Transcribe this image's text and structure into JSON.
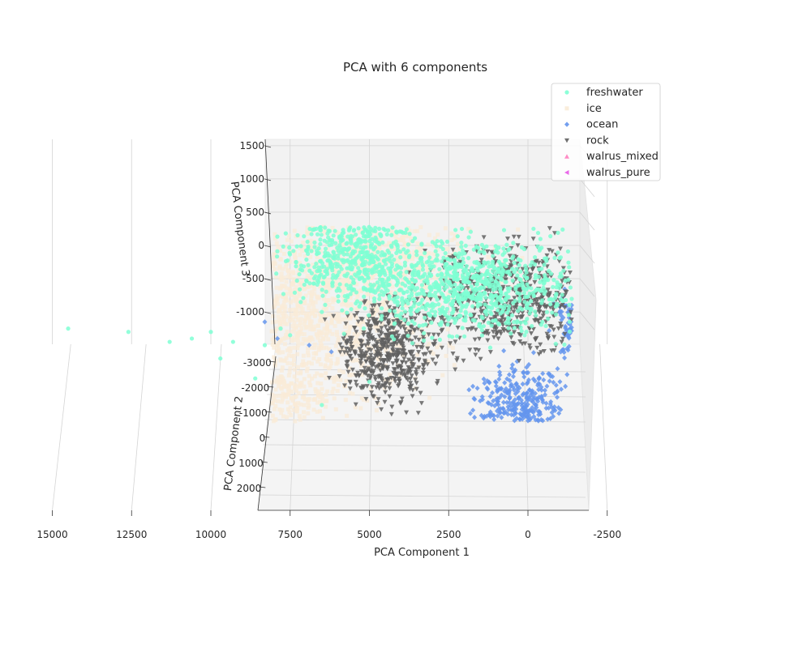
{
  "chart_data": {
    "type": "scatter",
    "projection": "3d",
    "title": "PCA with 6 components",
    "xlabel": "PCA Component 1",
    "ylabel": "PCA Component 2",
    "zlabel": "PCA Component 3",
    "xlim": [
      17000,
      -4000
    ],
    "ylim": [
      -3500,
      2500
    ],
    "zlim": [
      -1500,
      1500
    ],
    "x_ticks": [
      15000,
      12500,
      10000,
      7500,
      5000,
      2500,
      0,
      -2500
    ],
    "y_ticks": [
      -3000,
      -2000,
      -1000,
      0,
      1000,
      2000
    ],
    "z_ticks": [
      1500,
      1000,
      500,
      0,
      -500,
      -1000
    ],
    "grid": true,
    "legend_position": "top-right",
    "series": [
      {
        "name": "freshwater",
        "color": "#7fffd4",
        "marker": "circle",
        "clusters": [
          {
            "pc1_center": 2000,
            "pc1_spread": 1800,
            "pc3_center": -600,
            "pc3_spread": 350,
            "count": 900
          },
          {
            "pc1_center": 5500,
            "pc1_spread": 1100,
            "pc3_center": -100,
            "pc3_spread": 350,
            "count": 500
          }
        ],
        "points": [
          {
            "pc1": 14500,
            "pc3": -1250
          },
          {
            "pc1": 12600,
            "pc3": -1300
          },
          {
            "pc1": 11300,
            "pc3": -1450
          },
          {
            "pc1": 10600,
            "pc3": -1400
          },
          {
            "pc1": 10000,
            "pc3": -1300
          },
          {
            "pc1": 9300,
            "pc3": -1450
          },
          {
            "pc1": 8300,
            "pc3": -1500
          },
          {
            "pc1": 7500,
            "pc3": -1350
          },
          {
            "pc1": 9700,
            "pc3": -1700
          },
          {
            "pc1": 7800,
            "pc3": -1250
          },
          {
            "pc1": 6500,
            "pc3": -1000
          },
          {
            "pc1": 8600,
            "pc3": -2000
          },
          {
            "pc1": 5000,
            "pc3": -2050
          },
          {
            "pc1": 6500,
            "pc3": -2400
          }
        ]
      },
      {
        "name": "ice",
        "color": "#faebd7",
        "marker": "x",
        "clusters": [
          {
            "pc1_center": 12000,
            "pc1_spread": 2600,
            "pc3_center": -800,
            "pc3_spread": 500,
            "count": 1300
          },
          {
            "pc1_center": 7000,
            "pc1_spread": 2000,
            "pc3_center": -1200,
            "pc3_spread": 500,
            "count": 900
          },
          {
            "pc1_center": 5000,
            "pc1_spread": 1800,
            "pc3_center": -250,
            "pc3_spread": 300,
            "count": 600
          },
          {
            "pc1_center": 9000,
            "pc1_spread": 1500,
            "pc3_center": -2300,
            "pc3_spread": 300,
            "count": 600
          }
        ]
      },
      {
        "name": "ocean",
        "color": "#6495ed",
        "marker": "diamond",
        "clusters": [
          {
            "pc1_center": -1800,
            "pc1_spread": 400,
            "pc3_center": -1150,
            "pc3_spread": 250,
            "count": 350
          },
          {
            "pc1_center": 300,
            "pc1_spread": 700,
            "pc3_center": -2400,
            "pc3_spread": 300,
            "count": 350
          }
        ],
        "points": [
          {
            "pc1": 8300,
            "pc3": -1150
          },
          {
            "pc1": 7900,
            "pc3": -1400
          },
          {
            "pc1": 6900,
            "pc3": -1500
          },
          {
            "pc1": 6200,
            "pc3": -1600
          }
        ]
      },
      {
        "name": "rock",
        "color": "#606060",
        "marker": "triangle_down",
        "clusters": [
          {
            "pc1_center": 600,
            "pc1_spread": 1400,
            "pc3_center": -800,
            "pc3_spread": 400,
            "count": 600
          },
          {
            "pc1_center": 4500,
            "pc1_spread": 700,
            "pc3_center": -1600,
            "pc3_spread": 350,
            "count": 500
          }
        ]
      },
      {
        "name": "walrus_mixed",
        "color": "#ff7fbf",
        "marker": "triangle_up",
        "clusters": []
      },
      {
        "name": "walrus_pure",
        "color": "#e75ae7",
        "marker": "triangle_left",
        "clusters": []
      }
    ]
  }
}
